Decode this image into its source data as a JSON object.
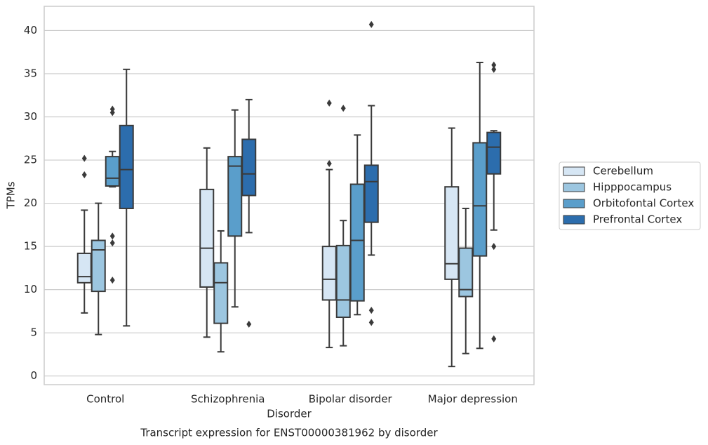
{
  "chart_data": {
    "type": "box",
    "title": "Transcript expression for ENST00000381962 by disorder",
    "x_label": "Disorder",
    "y_label": "TPMs",
    "categories": [
      "Control",
      "Schizophrenia",
      "Bipolar disorder",
      "Major depression"
    ],
    "ylim": [
      -1,
      42.8
    ],
    "yticks": [
      0,
      5,
      10,
      15,
      20,
      25,
      30,
      35,
      40
    ],
    "grid": true,
    "legend": "right",
    "series": [
      {
        "name": "Cerebellum",
        "color": "#d6e6f4",
        "whislo": [
          7.3,
          4.5,
          3.3,
          1.1
        ],
        "q1": [
          10.8,
          10.3,
          8.8,
          11.2
        ],
        "median": [
          11.5,
          14.8,
          11.2,
          13.0
        ],
        "q3": [
          14.2,
          21.6,
          15.0,
          21.9
        ],
        "whishi": [
          19.2,
          26.4,
          23.9,
          28.7
        ],
        "outliers": [
          [
            25.2,
            23.3
          ],
          [],
          [
            31.6,
            24.6
          ],
          []
        ]
      },
      {
        "name": "Hipppocampus",
        "color": "#9cc6e0",
        "whislo": [
          4.8,
          2.8,
          3.5,
          2.6
        ],
        "q1": [
          9.8,
          6.1,
          6.8,
          9.2
        ],
        "median": [
          14.6,
          10.8,
          8.8,
          10.0
        ],
        "q3": [
          15.7,
          13.1,
          15.1,
          14.8
        ],
        "whishi": [
          20.0,
          16.8,
          18.0,
          19.4
        ],
        "outliers": [
          [],
          [],
          [
            31.0
          ],
          []
        ]
      },
      {
        "name": "Orbitofontal Cortex",
        "color": "#5a9ecb",
        "whislo": [
          21.9,
          8.0,
          7.1,
          3.2
        ],
        "q1": [
          22.0,
          16.2,
          8.7,
          13.9
        ],
        "median": [
          22.9,
          24.3,
          15.7,
          19.7
        ],
        "q3": [
          25.4,
          25.4,
          22.2,
          27.0
        ],
        "whishi": [
          26.0,
          30.8,
          27.9,
          36.3
        ],
        "outliers": [
          [
            30.9,
            30.5,
            16.2,
            15.4,
            11.1
          ],
          [],
          [],
          []
        ]
      },
      {
        "name": "Prefrontal Cortex",
        "color": "#2c6dad",
        "whislo": [
          5.8,
          16.6,
          14.0,
          16.9
        ],
        "q1": [
          19.4,
          20.9,
          17.8,
          23.4
        ],
        "median": [
          23.9,
          23.4,
          22.5,
          26.5
        ],
        "q3": [
          29.0,
          27.4,
          24.4,
          28.2
        ],
        "whishi": [
          35.5,
          32.0,
          31.3,
          28.4
        ],
        "outliers": [
          [],
          [
            6.0
          ],
          [
            40.7,
            7.6,
            6.2
          ],
          [
            36.0,
            35.5,
            15.0,
            4.3
          ]
        ]
      }
    ]
  }
}
